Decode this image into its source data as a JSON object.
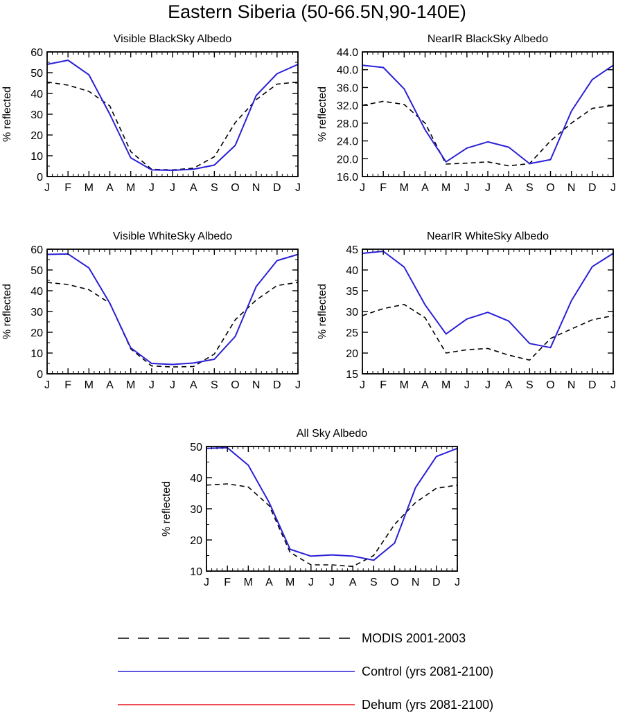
{
  "title": "Eastern Siberia (50-66.5N,90-140E)",
  "colors": {
    "modis": "#000000",
    "control": "#2a1fd6",
    "dehum": "#e8141e"
  },
  "legend": [
    {
      "key": "modis",
      "label": "MODIS 2001-2003",
      "style": "dashed"
    },
    {
      "key": "control",
      "label": "Control (yrs 2081-2100)",
      "style": "solid"
    },
    {
      "key": "dehum",
      "label": "Dehum (yrs 2081-2100)",
      "style": "solid"
    }
  ],
  "chart_data": [
    {
      "type": "line",
      "title": "Visible BlackSky Albedo",
      "ylabel": "% reflected",
      "categories": [
        "J",
        "F",
        "M",
        "A",
        "M",
        "J",
        "J",
        "A",
        "S",
        "O",
        "N",
        "D",
        "J"
      ],
      "ylim": [
        0,
        60
      ],
      "yticks": [
        0,
        10,
        20,
        30,
        40,
        50,
        60
      ],
      "yminor": 2,
      "series": [
        {
          "name": "MODIS 2001-2003",
          "key": "modis",
          "values": [
            45.5,
            44,
            41,
            34,
            12,
            3.5,
            3.2,
            4,
            9.5,
            26,
            37,
            44.5,
            45.5
          ]
        },
        {
          "name": "Control (yrs 2081-2100)",
          "key": "control",
          "values": [
            54,
            56,
            49,
            30,
            9,
            3.2,
            3.0,
            3.5,
            5.5,
            15,
            39,
            49.5,
            54
          ]
        }
      ]
    },
    {
      "type": "line",
      "title": "NearIR BlackSky Albedo",
      "ylabel": "% reflected",
      "categories": [
        "J",
        "F",
        "M",
        "A",
        "M",
        "J",
        "J",
        "A",
        "S",
        "O",
        "N",
        "D",
        "J"
      ],
      "ylim": [
        16,
        44
      ],
      "yticks": [
        "16.0",
        "20.0",
        "24.0",
        "28.0",
        "32.0",
        "36.0",
        "40.0",
        "44.0"
      ],
      "yminor": 1,
      "series": [
        {
          "name": "MODIS 2001-2003",
          "key": "modis",
          "values": [
            32,
            32.9,
            32.2,
            28,
            18.8,
            19,
            19.3,
            18.4,
            18.9,
            24,
            28,
            31.3,
            32
          ]
        },
        {
          "name": "Control (yrs 2081-2100)",
          "key": "control",
          "values": [
            41,
            40.5,
            35.7,
            26.5,
            19.3,
            22.4,
            23.8,
            22.6,
            18.9,
            19.8,
            30.7,
            37.8,
            41
          ]
        }
      ]
    },
    {
      "type": "line",
      "title": "Visible WhiteSky Albedo",
      "ylabel": "% reflected",
      "categories": [
        "J",
        "F",
        "M",
        "A",
        "M",
        "J",
        "J",
        "A",
        "S",
        "O",
        "N",
        "D",
        "J"
      ],
      "ylim": [
        0,
        60
      ],
      "yticks": [
        0,
        10,
        20,
        30,
        40,
        50,
        60
      ],
      "yminor": 2,
      "series": [
        {
          "name": "MODIS 2001-2003",
          "key": "modis",
          "values": [
            44,
            43,
            40.5,
            34,
            12,
            3.8,
            3.3,
            3.5,
            9.5,
            26,
            35.5,
            42.5,
            44
          ]
        },
        {
          "name": "Control (yrs 2081-2100)",
          "key": "control",
          "values": [
            57.5,
            57.7,
            51,
            34,
            12.5,
            5,
            4.5,
            5.2,
            7,
            18,
            42,
            54.5,
            57.5
          ]
        }
      ]
    },
    {
      "type": "line",
      "title": "NearIR WhiteSky Albedo",
      "ylabel": "% reflected",
      "categories": [
        "J",
        "F",
        "M",
        "A",
        "M",
        "J",
        "J",
        "A",
        "S",
        "O",
        "N",
        "D",
        "J"
      ],
      "ylim": [
        15,
        45
      ],
      "yticks": [
        15,
        20,
        25,
        30,
        35,
        40,
        45
      ],
      "yminor": 1,
      "series": [
        {
          "name": "MODIS 2001-2003",
          "key": "modis",
          "values": [
            29,
            30.7,
            31.7,
            28.5,
            20,
            20.8,
            21.1,
            19.5,
            18.3,
            23.5,
            25.8,
            28,
            29
          ]
        },
        {
          "name": "Control (yrs 2081-2100)",
          "key": "control",
          "values": [
            44,
            44.5,
            40.7,
            31.6,
            24.6,
            28.2,
            29.8,
            27.7,
            22.3,
            21.3,
            32.6,
            40.8,
            44
          ]
        }
      ]
    },
    {
      "type": "line",
      "title": "All Sky Albedo",
      "ylabel": "% reflected",
      "categories": [
        "J",
        "F",
        "M",
        "A",
        "M",
        "J",
        "J",
        "A",
        "S",
        "O",
        "N",
        "D",
        "J"
      ],
      "ylim": [
        10,
        50
      ],
      "yticks": [
        10,
        20,
        30,
        40,
        50
      ],
      "yminor": 2,
      "series": [
        {
          "name": "MODIS 2001-2003",
          "key": "modis",
          "values": [
            37.6,
            38,
            37,
            31,
            16,
            12,
            12,
            11.5,
            15,
            25,
            32,
            36.6,
            37.6
          ]
        },
        {
          "name": "Control (yrs 2081-2100)",
          "key": "control",
          "values": [
            49.4,
            49.6,
            44,
            32,
            17,
            14.8,
            15.2,
            14.8,
            13.5,
            19,
            36.8,
            46.8,
            49.4
          ]
        }
      ]
    }
  ]
}
